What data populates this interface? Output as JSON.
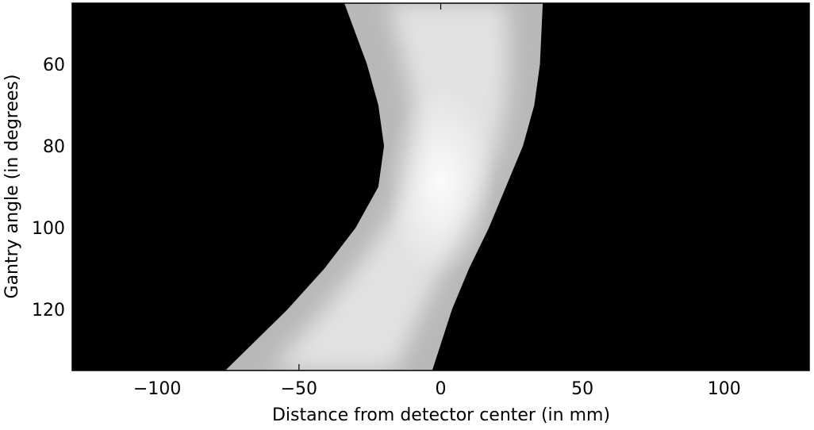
{
  "chart_data": {
    "type": "heatmap",
    "title": "",
    "xlabel": "Distance from detector center (in mm)",
    "ylabel": "Gantry angle (in degrees)",
    "xlim": [
      -130,
      130
    ],
    "ylim": [
      45,
      135
    ],
    "y_inverted": true,
    "grid": false,
    "colormap": "gray",
    "x_ticks": [
      -100,
      -50,
      0,
      50,
      100
    ],
    "x_tick_labels": [
      "−100",
      "−50",
      "0",
      "50",
      "100"
    ],
    "y_ticks": [
      60,
      80,
      100,
      120
    ],
    "y_tick_labels": [
      "60",
      "80",
      "100",
      "120"
    ],
    "band": {
      "left_edge": [
        [
          45,
          -34
        ],
        [
          60,
          -26
        ],
        [
          70,
          -22
        ],
        [
          80,
          -20
        ],
        [
          90,
          -22
        ],
        [
          100,
          -30
        ],
        [
          110,
          -41
        ],
        [
          120,
          -54
        ],
        [
          135,
          -76
        ]
      ],
      "right_edge": [
        [
          45,
          36
        ],
        [
          60,
          35
        ],
        [
          70,
          33
        ],
        [
          80,
          29
        ],
        [
          90,
          23
        ],
        [
          100,
          17
        ],
        [
          110,
          10
        ],
        [
          120,
          4
        ],
        [
          135,
          -3
        ]
      ],
      "peak": [
        0,
        89
      ]
    }
  }
}
